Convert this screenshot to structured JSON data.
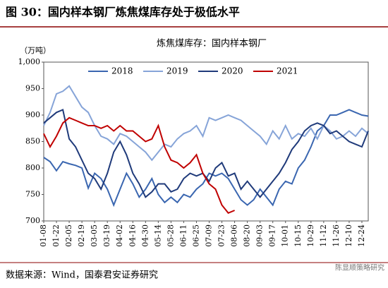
{
  "header": {
    "title": "图 30：国内样本钢厂炼焦煤库存处于极低水平"
  },
  "chart_data": {
    "type": "line",
    "title": "炼焦煤库存：国内样本钢厂",
    "y_unit": "（万吨）",
    "categories": [
      "01-08",
      null,
      "01-22",
      null,
      "02-05",
      null,
      "02-19",
      null,
      "03-05",
      null,
      "03-19",
      null,
      "04-02",
      null,
      "04-16",
      null,
      "04-30",
      null,
      "05-14",
      null,
      "05-28",
      null,
      "06-11",
      null,
      "06-25",
      null,
      "07-09",
      null,
      "07-23",
      null,
      "08-06",
      null,
      "08-20",
      null,
      "09-03",
      null,
      "09-17",
      null,
      "10-01",
      null,
      "10-15",
      null,
      "10-29",
      null,
      "11-12",
      null,
      "11-26",
      null,
      "12-10",
      null,
      "12-24",
      null
    ],
    "ylim": [
      700,
      1000
    ],
    "yticks": [
      700,
      750,
      800,
      850,
      900,
      950,
      {
        "value": 1000,
        "label": "1,000"
      }
    ],
    "series": [
      {
        "name": "2018",
        "color": "#3a66b0",
        "values": [
          820,
          812,
          795,
          812,
          808,
          805,
          800,
          762,
          790,
          780,
          760,
          730,
          760,
          790,
          770,
          745,
          760,
          780,
          750,
          735,
          745,
          735,
          750,
          745,
          760,
          770,
          790,
          785,
          790,
          780,
          760,
          740,
          730,
          740,
          760,
          745,
          730,
          760,
          775,
          770,
          800,
          815,
          840,
          870,
          880,
          900,
          900,
          905,
          910,
          905,
          900,
          898
        ]
      },
      {
        "name": "2019",
        "color": "#86a4d8",
        "values": [
          880,
          905,
          940,
          945,
          955,
          935,
          915,
          905,
          880,
          860,
          855,
          845,
          865,
          860,
          850,
          840,
          830,
          815,
          830,
          845,
          840,
          855,
          865,
          870,
          880,
          860,
          895,
          890,
          895,
          900,
          895,
          890,
          880,
          870,
          860,
          845,
          870,
          855,
          880,
          855,
          865,
          860,
          875,
          855,
          880,
          870,
          855,
          860,
          870,
          860,
          875,
          865
        ]
      },
      {
        "name": "2020",
        "color": "#1f3a7a",
        "values": [
          885,
          895,
          905,
          910,
          855,
          840,
          815,
          790,
          780,
          760,
          790,
          830,
          850,
          825,
          790,
          770,
          745,
          755,
          770,
          770,
          755,
          760,
          780,
          790,
          785,
          790,
          775,
          800,
          810,
          785,
          790,
          760,
          775,
          760,
          745,
          760,
          775,
          790,
          810,
          835,
          850,
          870,
          880,
          885,
          880,
          865,
          870,
          860,
          850,
          845,
          840,
          870
        ]
      },
      {
        "name": "2021",
        "color": "#c00000",
        "values": [
          865,
          840,
          860,
          885,
          895,
          890,
          885,
          880,
          880,
          875,
          880,
          870,
          880,
          870,
          870,
          860,
          850,
          855,
          880,
          840,
          815,
          810,
          800,
          810,
          825,
          790,
          770,
          760,
          730,
          715,
          720,
          null,
          null,
          null,
          null,
          null,
          null,
          null,
          null,
          null,
          null,
          null,
          null,
          null,
          null,
          null,
          null,
          null,
          null,
          null,
          null,
          null
        ]
      }
    ]
  },
  "footer": {
    "source": "数据来源：Wind，国泰君安证券研究",
    "watermark": "陈显顺策略研究"
  }
}
